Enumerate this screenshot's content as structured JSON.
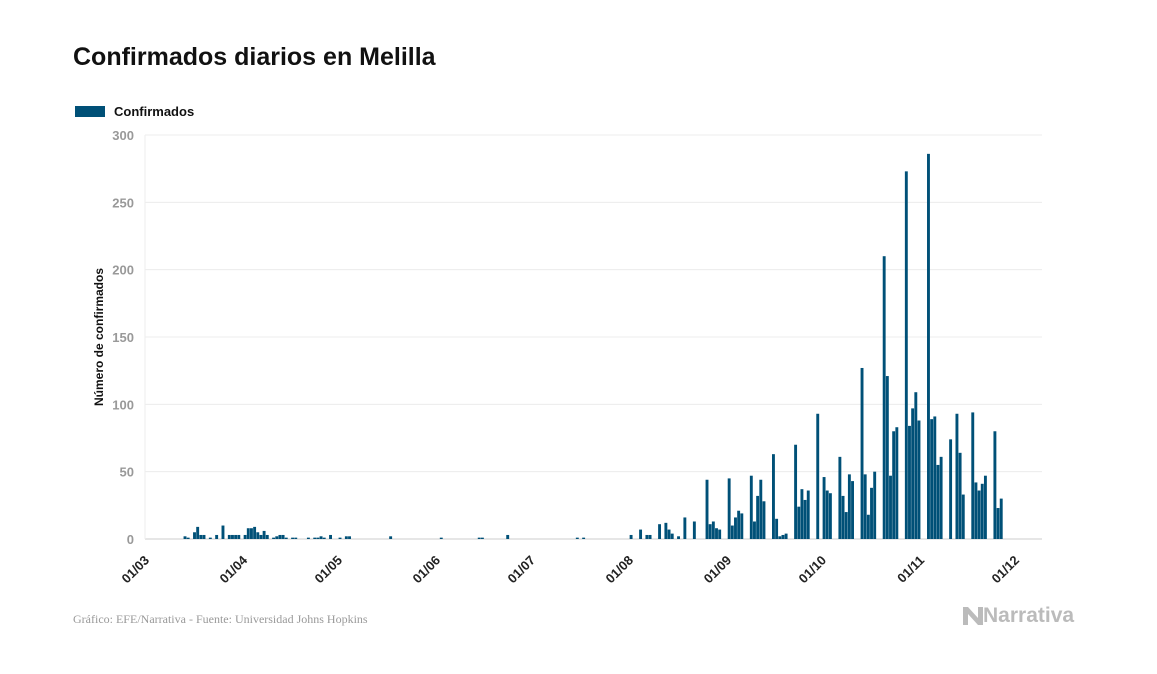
{
  "chart_data": {
    "type": "bar",
    "title": "Confirmados diarios en Melilla",
    "ylabel": "Número de confirmados",
    "xlabel": "",
    "ylim": [
      0,
      300
    ],
    "yticks": [
      0,
      50,
      100,
      150,
      200,
      250,
      300
    ],
    "xticks": [
      "01/03",
      "01/04",
      "01/05",
      "01/06",
      "01/07",
      "01/08",
      "01/09",
      "01/10",
      "01/11",
      "01/12"
    ],
    "grid": true,
    "legend_position": "top-left",
    "color": "#005077",
    "series": [
      {
        "name": "Confirmados",
        "points": [
          [
            "13/03",
            2
          ],
          [
            "14/03",
            1
          ],
          [
            "16/03",
            5
          ],
          [
            "17/03",
            9
          ],
          [
            "18/03",
            3
          ],
          [
            "19/03",
            3
          ],
          [
            "21/03",
            1
          ],
          [
            "23/03",
            3
          ],
          [
            "25/03",
            10
          ],
          [
            "27/03",
            3
          ],
          [
            "28/03",
            3
          ],
          [
            "29/03",
            3
          ],
          [
            "30/03",
            3
          ],
          [
            "01/04",
            3
          ],
          [
            "02/04",
            8
          ],
          [
            "03/04",
            8
          ],
          [
            "04/04",
            9
          ],
          [
            "05/04",
            5
          ],
          [
            "06/04",
            3
          ],
          [
            "07/04",
            6
          ],
          [
            "08/04",
            3
          ],
          [
            "10/04",
            1
          ],
          [
            "11/04",
            2
          ],
          [
            "12/04",
            3
          ],
          [
            "13/04",
            3
          ],
          [
            "14/04",
            1
          ],
          [
            "16/04",
            1
          ],
          [
            "17/04",
            1
          ],
          [
            "21/04",
            1
          ],
          [
            "23/04",
            1
          ],
          [
            "24/04",
            1
          ],
          [
            "25/04",
            2
          ],
          [
            "26/04",
            1
          ],
          [
            "28/04",
            3
          ],
          [
            "01/05",
            1
          ],
          [
            "03/05",
            2
          ],
          [
            "04/05",
            2
          ],
          [
            "17/05",
            2
          ],
          [
            "02/06",
            1
          ],
          [
            "14/06",
            1
          ],
          [
            "15/06",
            1
          ],
          [
            "23/06",
            3
          ],
          [
            "15/07",
            1
          ],
          [
            "17/07",
            1
          ],
          [
            "01/08",
            3
          ],
          [
            "04/08",
            7
          ],
          [
            "06/08",
            3
          ],
          [
            "07/08",
            3
          ],
          [
            "10/08",
            11
          ],
          [
            "12/08",
            12
          ],
          [
            "13/08",
            7
          ],
          [
            "14/08",
            4
          ],
          [
            "16/08",
            2
          ],
          [
            "18/08",
            16
          ],
          [
            "21/08",
            13
          ],
          [
            "25/08",
            44
          ],
          [
            "26/08",
            11
          ],
          [
            "27/08",
            13
          ],
          [
            "28/08",
            8
          ],
          [
            "29/08",
            7
          ],
          [
            "01/09",
            45
          ],
          [
            "02/09",
            10
          ],
          [
            "03/09",
            16
          ],
          [
            "04/09",
            21
          ],
          [
            "05/09",
            19
          ],
          [
            "08/09",
            47
          ],
          [
            "09/09",
            13
          ],
          [
            "10/09",
            32
          ],
          [
            "11/09",
            44
          ],
          [
            "12/09",
            28
          ],
          [
            "15/09",
            63
          ],
          [
            "16/09",
            15
          ],
          [
            "17/09",
            2
          ],
          [
            "18/09",
            3
          ],
          [
            "19/09",
            4
          ],
          [
            "22/09",
            70
          ],
          [
            "23/09",
            24
          ],
          [
            "24/09",
            37
          ],
          [
            "25/09",
            29
          ],
          [
            "26/09",
            36
          ],
          [
            "29/09",
            93
          ],
          [
            "01/10",
            46
          ],
          [
            "02/10",
            36
          ],
          [
            "03/10",
            34
          ],
          [
            "06/10",
            61
          ],
          [
            "07/10",
            32
          ],
          [
            "08/10",
            20
          ],
          [
            "09/10",
            48
          ],
          [
            "10/10",
            43
          ],
          [
            "13/10",
            127
          ],
          [
            "14/10",
            48
          ],
          [
            "15/10",
            18
          ],
          [
            "16/10",
            38
          ],
          [
            "17/10",
            50
          ],
          [
            "20/10",
            210
          ],
          [
            "21/10",
            121
          ],
          [
            "22/10",
            47
          ],
          [
            "23/10",
            80
          ],
          [
            "24/10",
            83
          ],
          [
            "27/10",
            273
          ],
          [
            "28/10",
            84
          ],
          [
            "29/10",
            97
          ],
          [
            "30/10",
            109
          ],
          [
            "31/10",
            88
          ],
          [
            "03/11",
            286
          ],
          [
            "04/11",
            89
          ],
          [
            "05/11",
            91
          ],
          [
            "06/11",
            55
          ],
          [
            "07/11",
            61
          ],
          [
            "10/11",
            74
          ],
          [
            "12/11",
            93
          ],
          [
            "13/11",
            64
          ],
          [
            "14/11",
            33
          ],
          [
            "17/11",
            94
          ],
          [
            "18/11",
            42
          ],
          [
            "19/11",
            36
          ],
          [
            "20/11",
            41
          ],
          [
            "21/11",
            47
          ],
          [
            "24/11",
            80
          ],
          [
            "25/11",
            23
          ],
          [
            "26/11",
            30
          ]
        ]
      }
    ]
  },
  "footer": {
    "source": "Gráfico: EFE/Narrativa - Fuente: Universidad Johns Hopkins"
  },
  "logo": {
    "text": "Narrativa",
    "icon": "narrativa-n-icon"
  }
}
